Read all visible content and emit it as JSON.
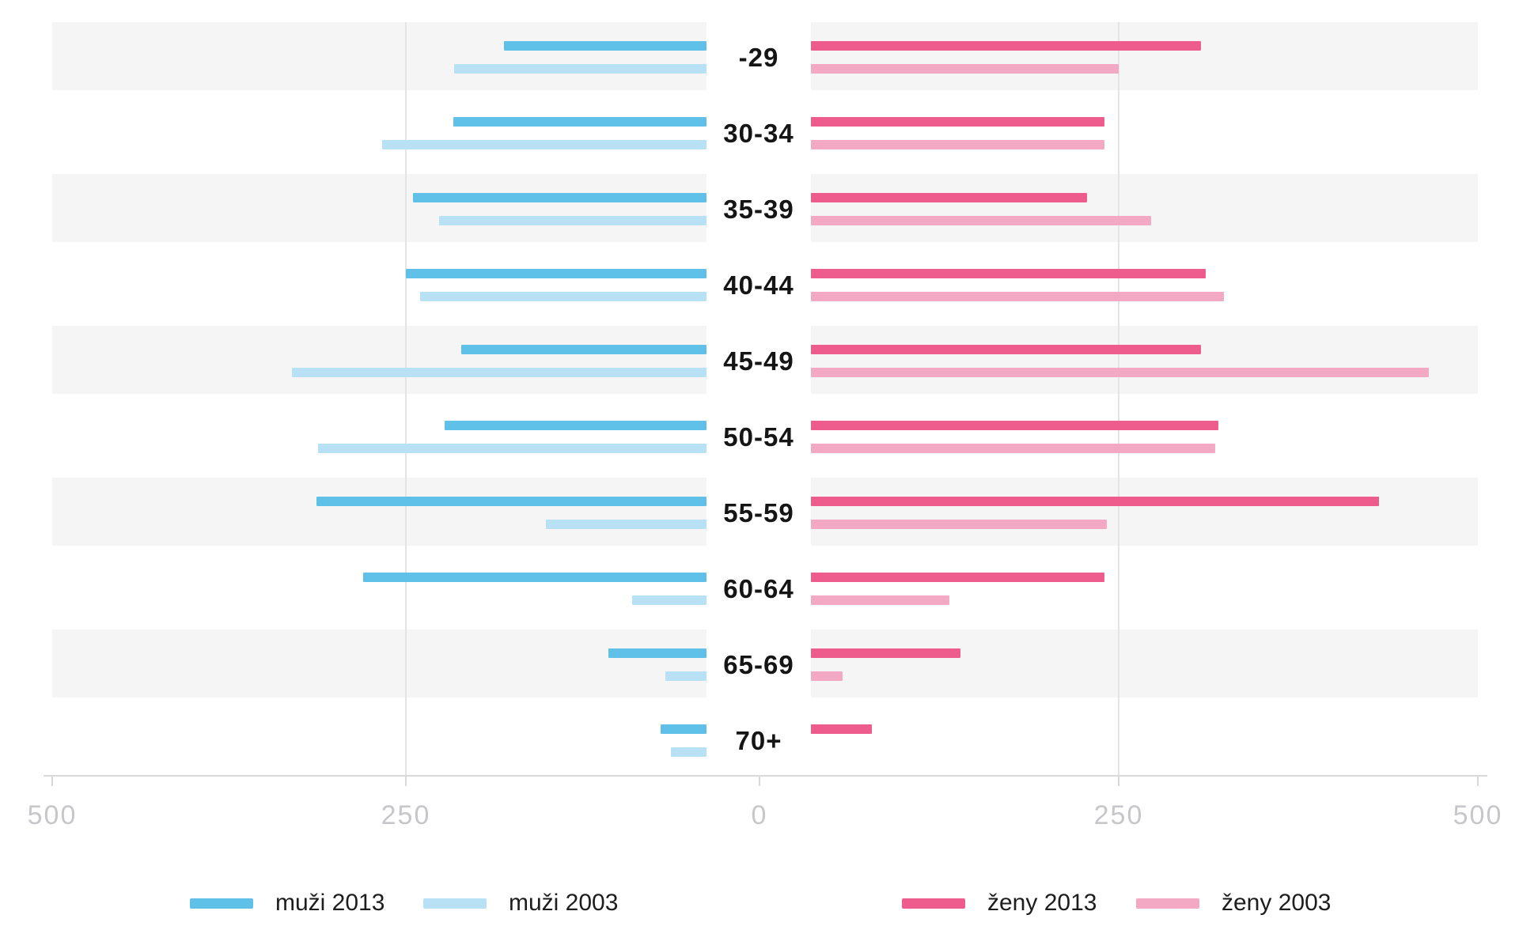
{
  "chart_data": {
    "type": "bar",
    "variant": "population-pyramid",
    "title": "",
    "categories": [
      "-29",
      "30-34",
      "35-39",
      "40-44",
      "45-49",
      "50-54",
      "55-59",
      "60-64",
      "65-69",
      "70+"
    ],
    "series": [
      {
        "name": "muži 2013",
        "side": "left",
        "year": "2013",
        "color": "#5fc0e8",
        "values": [
          142,
          178,
          206,
          211,
          172,
          184,
          274,
          241,
          69,
          32
        ]
      },
      {
        "name": "muži 2003",
        "side": "left",
        "year": "2003",
        "color": "#b9e1f6",
        "values": [
          177,
          228,
          188,
          201,
          291,
          273,
          113,
          52,
          29,
          25
        ]
      },
      {
        "name": "ženy 2013",
        "side": "right",
        "year": "2013",
        "color": "#ee5c8e",
        "values": [
          274,
          206,
          194,
          277,
          274,
          286,
          399,
          206,
          105,
          43
        ]
      },
      {
        "name": "ženy 2003",
        "side": "right",
        "year": "2003",
        "color": "#f3a9c4",
        "values": [
          216,
          206,
          239,
          290,
          434,
          284,
          208,
          97,
          22,
          0
        ]
      }
    ],
    "axis": {
      "tick_labels": [
        "500",
        "250",
        "0",
        "250",
        "500"
      ],
      "max": 500,
      "grid": "vertical-250-lines",
      "zebra_rows": "odd rows shaded light gray"
    },
    "legend": {
      "position": "bottom",
      "items": [
        "muži 2013",
        "muži 2003",
        "ženy 2013",
        "ženy 2003"
      ]
    },
    "colors": {
      "band": "#f5f5f6",
      "gridline": "#e4e4e7",
      "axis": "#d9d9dc",
      "axis_text": "#c7c7cb",
      "label_text": "#151515"
    }
  }
}
